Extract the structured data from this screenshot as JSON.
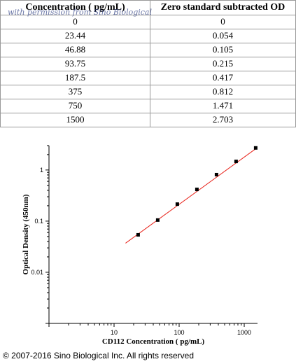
{
  "table": {
    "headers": [
      "Concentration ( pg/mL)",
      "Zero standard subtracted OD"
    ],
    "watermark": "with permission from Sino Biological",
    "rows": [
      [
        "0",
        "0"
      ],
      [
        "23.44",
        "0.054"
      ],
      [
        "46.88",
        "0.105"
      ],
      [
        "93.75",
        "0.215"
      ],
      [
        "187.5",
        "0.417"
      ],
      [
        "375",
        "0.812"
      ],
      [
        "750",
        "1.471"
      ],
      [
        "1500",
        "2.703"
      ]
    ]
  },
  "chart_data": {
    "type": "scatter",
    "xlabel": "CD112 Concentration ( pg/mL)",
    "ylabel": "Optical Density (450nm)",
    "xscale": "log",
    "yscale": "log",
    "xlim": [
      1,
      1600
    ],
    "ylim": [
      0.001,
      3
    ],
    "x_ticks": [
      10,
      100,
      1000
    ],
    "x_tick_labels": [
      "10",
      "100",
      "1000"
    ],
    "y_ticks": [
      0.01,
      0.1,
      1
    ],
    "y_tick_labels": [
      "0.01",
      "0.1",
      "1"
    ],
    "grid": false,
    "marker_color": "#000000",
    "fit_line_color": "#e8231b",
    "points": [
      {
        "x": 23.44,
        "y": 0.054
      },
      {
        "x": 46.88,
        "y": 0.105
      },
      {
        "x": 93.75,
        "y": 0.215
      },
      {
        "x": 187.5,
        "y": 0.417
      },
      {
        "x": 375,
        "y": 0.812
      },
      {
        "x": 750,
        "y": 1.471
      },
      {
        "x": 1500,
        "y": 2.703
      }
    ],
    "fit_line": {
      "x": [
        15,
        1500
      ],
      "y": [
        0.037,
        2.6
      ]
    }
  },
  "footer": {
    "copyright": "© 2007-2016 Sino Biological Inc. All rights reserved"
  }
}
